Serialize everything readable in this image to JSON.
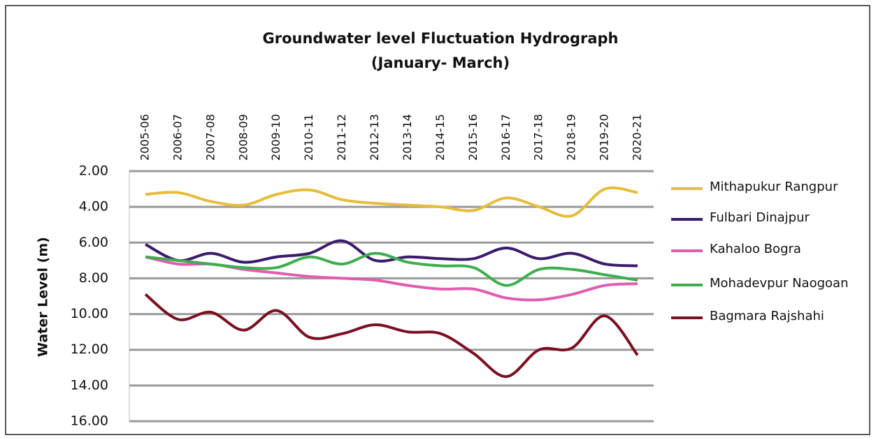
{
  "chart_data": {
    "type": "line",
    "title": "Groundwater level Fluctuation Hydrograph",
    "subtitle": "(January- March)",
    "y_label": "Water Level (m)",
    "categories": [
      "2005-06",
      "2006-07",
      "2007-08",
      "2008-09",
      "2009-10",
      "2010-11",
      "2011-12",
      "2012-13",
      "2013-14",
      "2014-15",
      "2015-16",
      "2016-17",
      "2017-18",
      "2018-19",
      "2019-20",
      "2020-21"
    ],
    "ylim": [
      2,
      16
    ],
    "inverted": true,
    "yticks": [
      {
        "value": 2,
        "label": "2.00"
      },
      {
        "value": 4,
        "label": "4.00"
      },
      {
        "value": 6,
        "label": "6.00"
      },
      {
        "value": 8,
        "label": "8.00"
      },
      {
        "value": 10,
        "label": "10.00"
      },
      {
        "value": 12,
        "label": "12.00"
      },
      {
        "value": 14,
        "label": "14.00"
      },
      {
        "value": 16,
        "label": "16.00"
      }
    ],
    "grid": true,
    "legend": "right",
    "series": [
      {
        "name": "Mithapukur Rangpur",
        "color": "#e6bd3a",
        "values": [
          3.3,
          3.2,
          3.7,
          3.9,
          3.3,
          3.05,
          3.6,
          3.8,
          3.9,
          4.0,
          4.2,
          3.5,
          4.0,
          4.5,
          3.0,
          3.2
        ]
      },
      {
        "name": "Fulbari  Dinajpur",
        "color": "#3b1b6b",
        "values": [
          6.1,
          7.0,
          6.6,
          7.1,
          6.8,
          6.6,
          5.9,
          7.0,
          6.8,
          6.9,
          6.9,
          6.3,
          6.9,
          6.6,
          7.2,
          7.3
        ]
      },
      {
        "name": "Kahaloo Bogra",
        "color": "#e05db0",
        "values": [
          6.8,
          7.2,
          7.2,
          7.5,
          7.7,
          7.9,
          8.0,
          8.1,
          8.4,
          8.6,
          8.6,
          9.1,
          9.2,
          8.9,
          8.4,
          8.3
        ]
      },
      {
        "name": "Mohadevpur Naogoan",
        "color": "#3fae4f",
        "values": [
          6.8,
          7.0,
          7.2,
          7.4,
          7.4,
          6.8,
          7.2,
          6.6,
          7.1,
          7.3,
          7.4,
          8.4,
          7.5,
          7.5,
          7.8,
          8.1
        ]
      },
      {
        "name": "Bagmara  Rajshahi",
        "color": "#7a1022",
        "values": [
          8.9,
          10.3,
          9.9,
          10.9,
          9.8,
          11.3,
          11.1,
          10.6,
          11.0,
          11.1,
          12.2,
          13.5,
          12.0,
          11.9,
          10.1,
          12.3
        ]
      }
    ]
  }
}
